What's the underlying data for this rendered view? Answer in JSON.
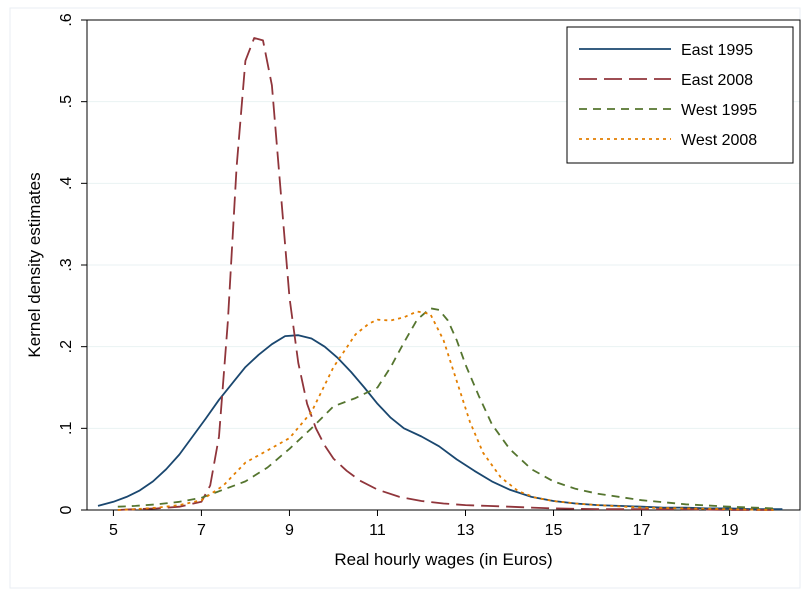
{
  "chart_data": {
    "type": "line",
    "title": "",
    "xlabel": "Real hourly wages (in Euros)",
    "ylabel": "Kernel density estimates",
    "xlim": [
      4.4,
      20.6
    ],
    "ylim": [
      0,
      0.6
    ],
    "x_ticks": [
      5,
      7,
      9,
      11,
      13,
      15,
      17,
      19
    ],
    "x_tick_labels": [
      "5",
      "7",
      "9",
      "11",
      "13",
      "15",
      "17",
      "19"
    ],
    "y_ticks": [
      0,
      0.1,
      0.2,
      0.3,
      0.4,
      0.5,
      0.6
    ],
    "y_tick_labels": [
      "0",
      ".1",
      ".2",
      ".3",
      ".4",
      ".5",
      ".6"
    ],
    "grid": "horizontal",
    "legend_position": "top-right",
    "series": [
      {
        "name": "East 1995",
        "color": "#1a476f",
        "dash": "solid",
        "x": [
          4.65,
          5.0,
          5.3,
          5.6,
          5.9,
          6.2,
          6.5,
          6.8,
          7.1,
          7.4,
          7.7,
          8.0,
          8.3,
          8.6,
          8.9,
          9.2,
          9.5,
          9.8,
          10.1,
          10.4,
          10.7,
          11.0,
          11.3,
          11.6,
          12.0,
          12.4,
          12.8,
          13.2,
          13.6,
          14.0,
          14.5,
          15.0,
          15.5,
          16.0,
          16.5,
          17.0,
          17.5,
          18.0,
          18.5,
          19.0,
          19.5,
          20.0,
          20.2
        ],
        "y": [
          0.005,
          0.01,
          0.016,
          0.024,
          0.035,
          0.05,
          0.068,
          0.09,
          0.112,
          0.135,
          0.155,
          0.175,
          0.19,
          0.203,
          0.213,
          0.214,
          0.21,
          0.2,
          0.186,
          0.169,
          0.15,
          0.13,
          0.113,
          0.1,
          0.09,
          0.078,
          0.062,
          0.048,
          0.035,
          0.025,
          0.016,
          0.011,
          0.008,
          0.006,
          0.005,
          0.004,
          0.003,
          0.003,
          0.002,
          0.002,
          0.001,
          0.001,
          0.001
        ]
      },
      {
        "name": "East 2008",
        "color": "#90353b",
        "dash": "longdash",
        "x": [
          5.1,
          5.5,
          6.0,
          6.5,
          7.0,
          7.2,
          7.4,
          7.6,
          7.8,
          8.0,
          8.2,
          8.4,
          8.6,
          8.8,
          9.0,
          9.2,
          9.4,
          9.6,
          9.8,
          10.0,
          10.3,
          10.6,
          11.0,
          11.5,
          12.0,
          12.5,
          13.0,
          13.5,
          14.0,
          14.5,
          15.0,
          16.0,
          17.0,
          18.0,
          19.0,
          20.0
        ],
        "y": [
          0.0,
          0.001,
          0.002,
          0.004,
          0.01,
          0.03,
          0.09,
          0.23,
          0.42,
          0.55,
          0.578,
          0.575,
          0.52,
          0.39,
          0.26,
          0.18,
          0.13,
          0.1,
          0.079,
          0.063,
          0.048,
          0.036,
          0.025,
          0.016,
          0.011,
          0.008,
          0.006,
          0.005,
          0.004,
          0.003,
          0.002,
          0.001,
          0.001,
          0.001,
          0.0,
          0.0
        ]
      },
      {
        "name": "West 1995",
        "color": "#55752f",
        "dash": "dash",
        "x": [
          5.1,
          5.5,
          6.0,
          6.5,
          7.0,
          7.5,
          8.0,
          8.5,
          9.0,
          9.5,
          10.0,
          10.5,
          11.0,
          11.3,
          11.6,
          11.9,
          12.2,
          12.4,
          12.6,
          12.8,
          13.0,
          13.3,
          13.6,
          14.0,
          14.5,
          15.0,
          15.5,
          16.0,
          17.0,
          18.0,
          19.0,
          20.0
        ],
        "y": [
          0.004,
          0.005,
          0.007,
          0.01,
          0.015,
          0.025,
          0.035,
          0.052,
          0.075,
          0.1,
          0.127,
          0.137,
          0.15,
          0.175,
          0.205,
          0.233,
          0.247,
          0.245,
          0.232,
          0.208,
          0.178,
          0.14,
          0.105,
          0.075,
          0.05,
          0.035,
          0.026,
          0.02,
          0.012,
          0.007,
          0.004,
          0.002
        ]
      },
      {
        "name": "West 2008",
        "color": "#e37e00",
        "dash": "dot",
        "x": [
          5.1,
          5.5,
          6.0,
          6.5,
          7.0,
          7.5,
          8.0,
          8.5,
          9.0,
          9.5,
          10.0,
          10.5,
          10.8,
          11.0,
          11.3,
          11.6,
          11.9,
          12.2,
          12.5,
          12.8,
          13.1,
          13.4,
          13.8,
          14.2,
          14.6,
          15.0,
          15.5,
          16.0,
          17.0,
          18.0,
          19.0,
          20.0
        ],
        "y": [
          0.0,
          0.001,
          0.003,
          0.006,
          0.012,
          0.03,
          0.058,
          0.073,
          0.088,
          0.12,
          0.175,
          0.215,
          0.228,
          0.233,
          0.232,
          0.236,
          0.243,
          0.24,
          0.208,
          0.158,
          0.108,
          0.07,
          0.04,
          0.023,
          0.015,
          0.011,
          0.008,
          0.006,
          0.003,
          0.002,
          0.001,
          0.0
        ]
      }
    ]
  }
}
